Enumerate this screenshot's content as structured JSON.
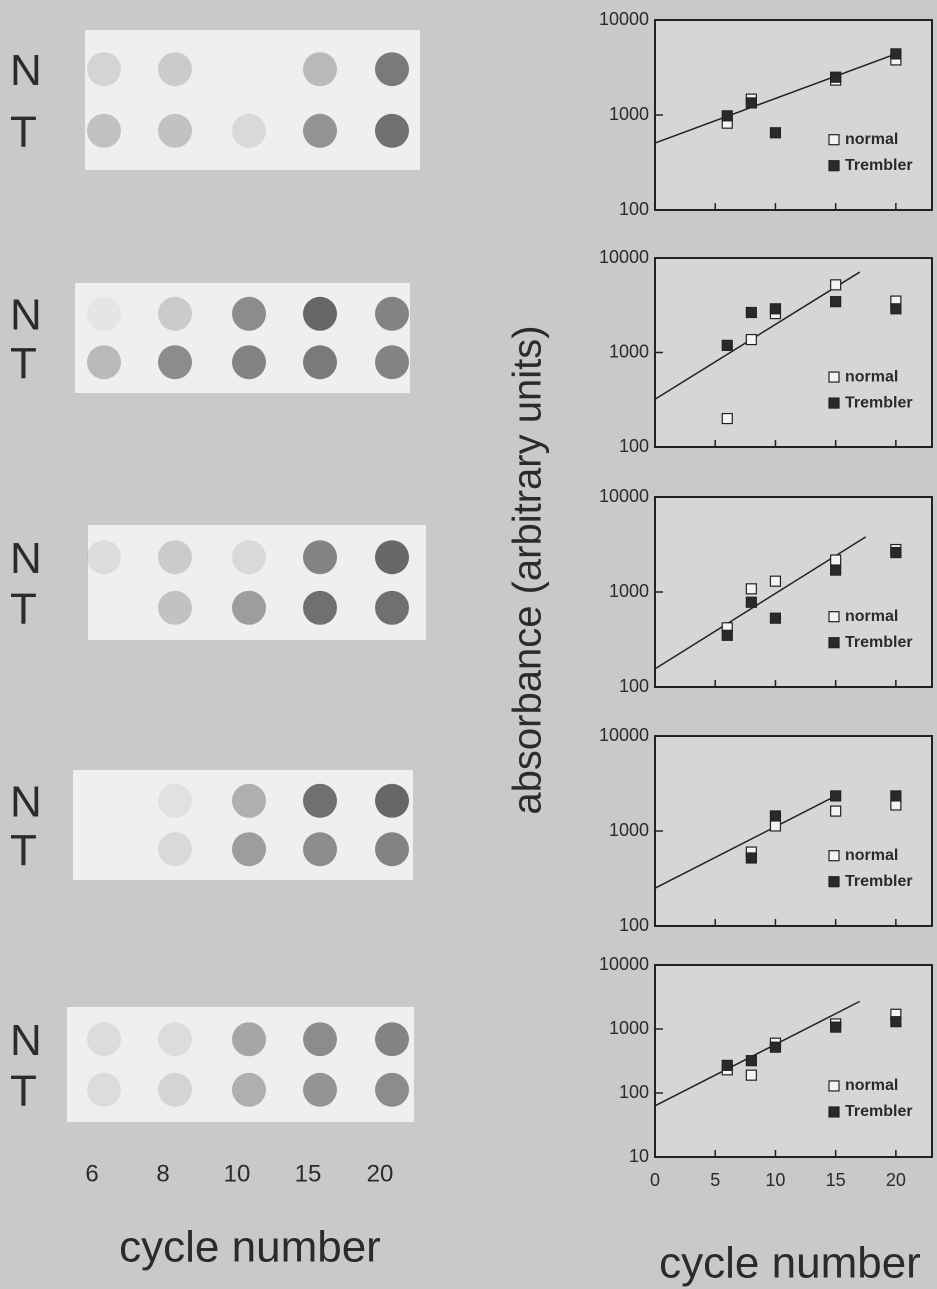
{
  "row_labels": [
    "N",
    "T"
  ],
  "blot_lanes": [
    "6",
    "8",
    "10",
    "15",
    "20"
  ],
  "blot_x_label": "cycle number",
  "y_label": "absorbance (arbitrary units)",
  "x_label": "cycle number",
  "chart_data": [
    {
      "type": "scatter",
      "log_y": true,
      "xlim": [
        0,
        23
      ],
      "xticks": [
        0,
        5,
        10,
        15,
        20
      ],
      "xtick_labels": false,
      "ylim": [
        100,
        10000
      ],
      "yticks": [
        100,
        1000,
        10000
      ],
      "x": [
        6,
        8,
        10,
        15,
        20
      ],
      "series": [
        {
          "name": "normal",
          "color": "#f4f4f4",
          "values": [
            820,
            1470,
            null,
            2330,
            3800
          ]
        },
        {
          "name": "Trembler",
          "color": "#2a2a2a",
          "values": [
            980,
            1340,
            650,
            2500,
            4400
          ]
        }
      ],
      "fit": {
        "x": [
          0,
          20
        ],
        "values": [
          507,
          4400
        ]
      }
    },
    {
      "type": "scatter",
      "log_y": true,
      "xlim": [
        0,
        23
      ],
      "xticks": [
        0,
        5,
        10,
        15,
        20
      ],
      "xtick_labels": false,
      "ylim": [
        100,
        10000
      ],
      "yticks": [
        100,
        1000,
        10000
      ],
      "x": [
        6,
        8,
        10,
        15,
        20
      ],
      "series": [
        {
          "name": "normal",
          "color": "#f4f4f4",
          "values": [
            200,
            1370,
            2580,
            5200,
            3500
          ]
        },
        {
          "name": "Trembler",
          "color": "#2a2a2a",
          "values": [
            1190,
            2650,
            2900,
            3450,
            2900
          ]
        }
      ],
      "fit": {
        "x": [
          0,
          17
        ],
        "values": [
          320,
          7100
        ]
      }
    },
    {
      "type": "scatter",
      "log_y": true,
      "xlim": [
        0,
        23
      ],
      "xticks": [
        0,
        5,
        10,
        15,
        20
      ],
      "xtick_labels": false,
      "ylim": [
        100,
        10000
      ],
      "yticks": [
        100,
        1000,
        10000
      ],
      "x": [
        6,
        8,
        10,
        15,
        20
      ],
      "series": [
        {
          "name": "normal",
          "color": "#f4f4f4",
          "values": [
            420,
            1080,
            1300,
            2170,
            2800
          ]
        },
        {
          "name": "Trembler",
          "color": "#2a2a2a",
          "values": [
            350,
            780,
            530,
            1700,
            2600
          ]
        }
      ],
      "fit": {
        "x": [
          0,
          17.5
        ],
        "values": [
          155,
          3800
        ]
      }
    },
    {
      "type": "scatter",
      "log_y": true,
      "xlim": [
        0,
        23
      ],
      "xticks": [
        0,
        5,
        10,
        15,
        20
      ],
      "xtick_labels": false,
      "ylim": [
        100,
        10000
      ],
      "yticks": [
        100,
        1000,
        10000
      ],
      "x": [
        6,
        8,
        10,
        15,
        20
      ],
      "series": [
        {
          "name": "normal",
          "color": "#f4f4f4",
          "values": [
            null,
            600,
            1130,
            1620,
            1880
          ]
        },
        {
          "name": "Trembler",
          "color": "#2a2a2a",
          "values": [
            null,
            520,
            1440,
            2340,
            2340
          ]
        }
      ],
      "fit": {
        "x": [
          0,
          15
        ],
        "values": [
          250,
          2340
        ]
      }
    },
    {
      "type": "scatter",
      "log_y": true,
      "xlim": [
        0,
        23
      ],
      "xticks": [
        0,
        5,
        10,
        15,
        20
      ],
      "xtick_labels": true,
      "ylim": [
        10,
        10000
      ],
      "yticks": [
        10,
        100,
        1000,
        10000
      ],
      "x": [
        6,
        8,
        10,
        15,
        20
      ],
      "series": [
        {
          "name": "normal",
          "color": "#f4f4f4",
          "values": [
            230,
            190,
            600,
            1200,
            1700
          ]
        },
        {
          "name": "Trembler",
          "color": "#2a2a2a",
          "values": [
            270,
            320,
            520,
            1070,
            1300
          ]
        }
      ],
      "fit": {
        "x": [
          0,
          17
        ],
        "values": [
          63,
          2700
        ]
      }
    }
  ]
}
